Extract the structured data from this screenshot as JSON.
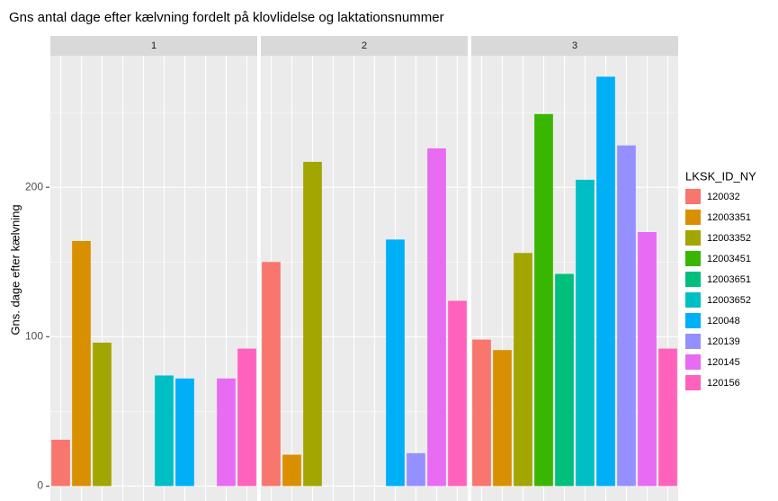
{
  "chart_data": {
    "type": "bar",
    "title": "Gns antal dage efter kælvning fordelt på klovlidelse og laktationsnummer",
    "ylabel": "Gns. dage efter kælvning",
    "legend_title": "LKSK_ID_NY",
    "categories": [
      "120032",
      "12003351",
      "12003352",
      "12003451",
      "12003651",
      "12003652",
      "120048",
      "120139",
      "120145",
      "120156"
    ],
    "colors": [
      "#F8766D",
      "#D89000",
      "#A3A500",
      "#39B600",
      "#00BF7D",
      "#00BFC4",
      "#00B0F6",
      "#9590FF",
      "#E76BF3",
      "#FF62BC"
    ],
    "panels": [
      {
        "label": "1",
        "values": [
          31,
          164,
          96,
          null,
          null,
          74,
          72,
          null,
          72,
          92
        ]
      },
      {
        "label": "2",
        "values": [
          150,
          21,
          217,
          null,
          null,
          null,
          165,
          22,
          226,
          124
        ]
      },
      {
        "label": "3",
        "values": [
          98,
          91,
          156,
          249,
          142,
          205,
          274,
          228,
          170,
          92
        ]
      }
    ],
    "ylim": [
      -10,
      288
    ],
    "yticks": [
      0,
      100,
      200
    ],
    "minor_yticks": [
      50,
      150,
      250
    ],
    "grid": true,
    "legend": "right"
  }
}
